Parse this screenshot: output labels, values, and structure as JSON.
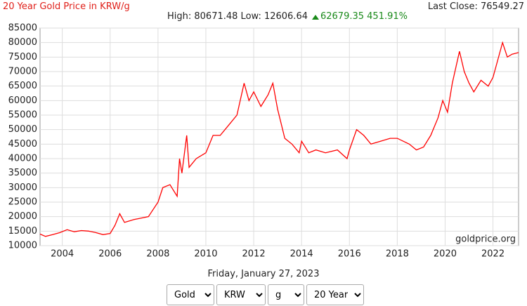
{
  "header": {
    "title": "20 Year Gold Price in KRW/g",
    "last_close": "Last Close: 76549.27",
    "stats": "High: 80671.48 Low: 12606.64",
    "change": "62679.35 451.91%",
    "date": "Friday, January 27, 2023"
  },
  "controls": {
    "metal": "Gold",
    "currency": "KRW",
    "unit": "g",
    "period": "20 Years"
  },
  "chart_data": {
    "type": "line",
    "watermark": "goldprice.org",
    "color": "#ff0000",
    "grid": true,
    "xlim": [
      2003.07,
      2023.07
    ],
    "xticks": [
      2004,
      2006,
      2008,
      2010,
      2012,
      2014,
      2016,
      2018,
      2020,
      2022
    ],
    "ylim": [
      10000,
      85000
    ],
    "yticks": [
      10000,
      15000,
      20000,
      25000,
      30000,
      35000,
      40000,
      45000,
      50000,
      55000,
      60000,
      65000,
      70000,
      75000,
      80000,
      85000
    ],
    "x": [
      2003.07,
      2003.3,
      2003.6,
      2003.9,
      2004.2,
      2004.5,
      2004.8,
      2005.1,
      2005.4,
      2005.7,
      2006.0,
      2006.2,
      2006.4,
      2006.6,
      2007.0,
      2007.3,
      2007.6,
      2008.0,
      2008.2,
      2008.5,
      2008.8,
      2008.9,
      2009.0,
      2009.2,
      2009.3,
      2009.6,
      2010.0,
      2010.3,
      2010.6,
      2011.0,
      2011.3,
      2011.6,
      2011.8,
      2012.0,
      2012.3,
      2012.6,
      2012.8,
      2013.0,
      2013.3,
      2013.6,
      2013.9,
      2014.0,
      2014.3,
      2014.6,
      2015.0,
      2015.5,
      2015.9,
      2016.0,
      2016.3,
      2016.6,
      2016.9,
      2017.3,
      2017.7,
      2018.0,
      2018.5,
      2018.8,
      2019.1,
      2019.4,
      2019.7,
      2019.9,
      2020.1,
      2020.3,
      2020.6,
      2020.8,
      2021.0,
      2021.2,
      2021.5,
      2021.8,
      2022.0,
      2022.2,
      2022.4,
      2022.6,
      2022.8,
      2023.07
    ],
    "values": [
      14000,
      13200,
      13800,
      14500,
      15500,
      14800,
      15200,
      15000,
      14500,
      13800,
      14200,
      17000,
      21000,
      18000,
      19000,
      19500,
      20000,
      25000,
      30000,
      31000,
      27000,
      40000,
      35000,
      48000,
      37000,
      40000,
      42000,
      48000,
      48000,
      52000,
      55000,
      66000,
      60000,
      63000,
      58000,
      62000,
      66000,
      57000,
      47000,
      45000,
      42000,
      46000,
      42000,
      43000,
      42000,
      43000,
      40000,
      43000,
      50000,
      48000,
      45000,
      46000,
      47000,
      47000,
      45000,
      43000,
      44000,
      48000,
      54000,
      60000,
      56000,
      66000,
      77000,
      70000,
      66000,
      63000,
      67000,
      65000,
      68000,
      74000,
      80000,
      75000,
      76000,
      76549.27
    ]
  }
}
